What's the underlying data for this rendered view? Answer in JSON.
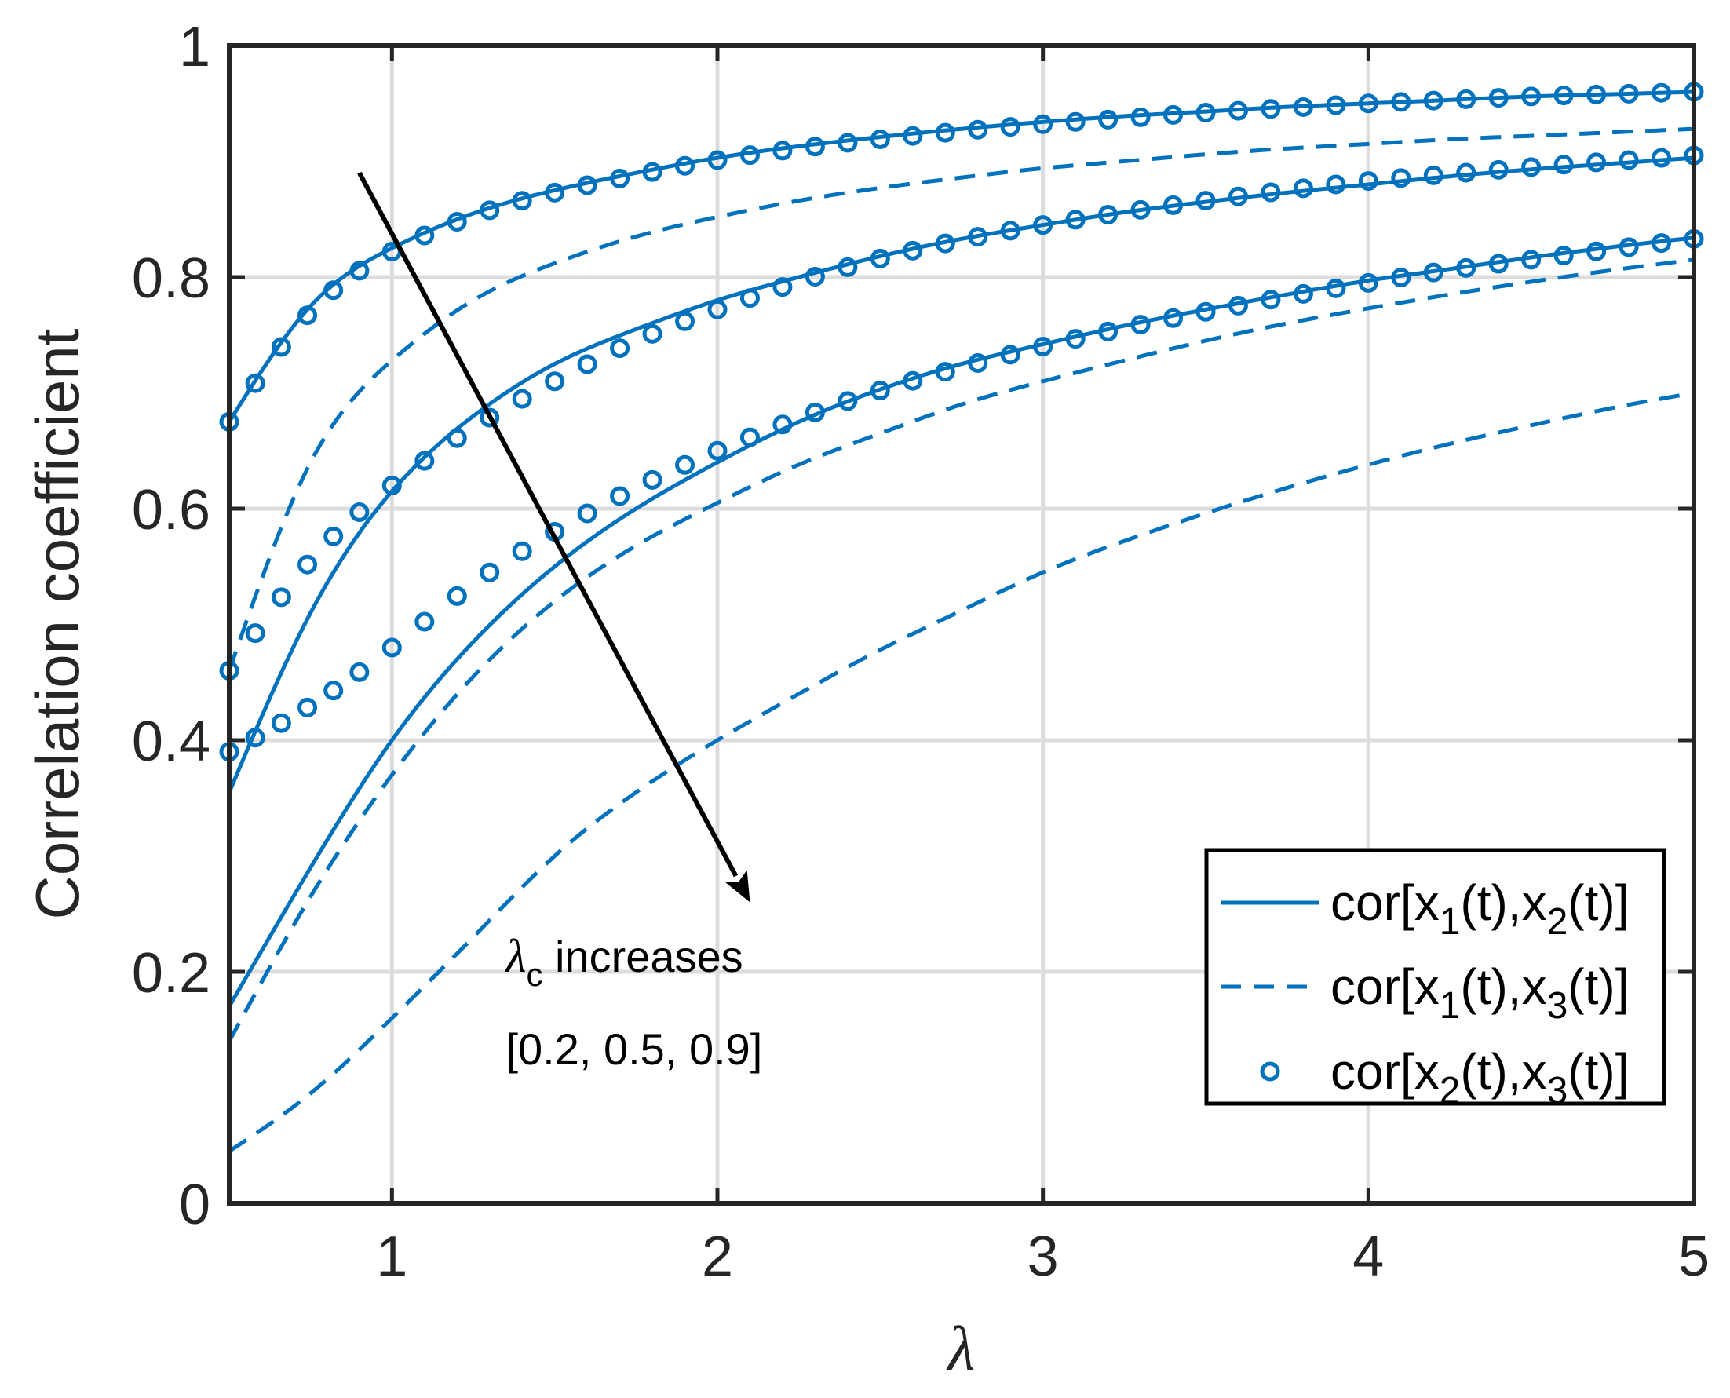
{
  "chart_data": {
    "type": "line",
    "title": "",
    "xlabel": "λ",
    "ylabel": "Correlation coefficient",
    "xlim": [
      0.5,
      5
    ],
    "ylim": [
      0,
      1
    ],
    "x_ticks": [
      1,
      2,
      3,
      4,
      5
    ],
    "y_ticks": [
      0,
      0.2,
      0.4,
      0.6,
      0.8,
      1
    ],
    "x_tick_labels": [
      "1",
      "2",
      "3",
      "4",
      "5"
    ],
    "y_tick_labels": [
      "0",
      "0.2",
      "0.4",
      "0.6",
      "0.8",
      "1"
    ],
    "grid": true,
    "legend_position": "bottom-right",
    "color": "#0072BD",
    "legend": [
      {
        "style": "solid",
        "prefix": "cor[x",
        "s1": "1",
        "mid": "(t),x",
        "s2": "2",
        "suffix": "(t)]"
      },
      {
        "style": "dashed",
        "prefix": "cor[x",
        "s1": "1",
        "mid": "(t),x",
        "s2": "3",
        "suffix": "(t)]"
      },
      {
        "style": "markers",
        "prefix": "cor[x",
        "s1": "2",
        "mid": "(t),x",
        "s2": "3",
        "suffix": "(t)]"
      }
    ],
    "x": [
      0.5,
      0.75,
      1.0,
      1.25,
      1.5,
      1.75,
      2.0,
      2.25,
      2.5,
      2.75,
      3.0,
      3.25,
      3.5,
      3.75,
      4.0,
      4.25,
      4.5,
      4.75,
      5.0
    ],
    "series": [
      {
        "name": "cor[x1(t),x2(t)] λc=0.2",
        "style": "solid",
        "values": [
          0.675,
          0.775,
          0.825,
          0.855,
          0.875,
          0.89,
          0.903,
          0.913,
          0.921,
          0.928,
          0.934,
          0.939,
          0.943,
          0.947,
          0.95,
          0.953,
          0.956,
          0.958,
          0.96
        ]
      },
      {
        "name": "cor[x1(t),x2(t)] λc=0.5",
        "style": "solid",
        "values": [
          0.355,
          0.51,
          0.615,
          0.68,
          0.725,
          0.755,
          0.78,
          0.8,
          0.818,
          0.833,
          0.845,
          0.856,
          0.865,
          0.873,
          0.88,
          0.887,
          0.893,
          0.898,
          0.903
        ]
      },
      {
        "name": "cor[x1(t),x2(t)] λc=0.9",
        "style": "solid",
        "values": [
          0.17,
          0.29,
          0.4,
          0.485,
          0.55,
          0.6,
          0.64,
          0.675,
          0.703,
          0.725,
          0.742,
          0.758,
          0.772,
          0.785,
          0.797,
          0.807,
          0.817,
          0.826,
          0.834
        ]
      },
      {
        "name": "cor[x1(t),x3(t)] λc=0.2",
        "style": "dashed",
        "values": [
          0.46,
          0.64,
          0.728,
          0.78,
          0.812,
          0.835,
          0.852,
          0.866,
          0.877,
          0.886,
          0.894,
          0.9,
          0.906,
          0.911,
          0.915,
          0.919,
          0.922,
          0.925,
          0.928
        ]
      },
      {
        "name": "cor[x1(t),x3(t)] λc=0.5",
        "style": "dashed",
        "values": [
          0.14,
          0.265,
          0.37,
          0.455,
          0.52,
          0.568,
          0.605,
          0.638,
          0.665,
          0.69,
          0.71,
          0.728,
          0.745,
          0.76,
          0.773,
          0.785,
          0.796,
          0.806,
          0.815
        ]
      },
      {
        "name": "cor[x1(t),x3(t)] λc=0.9",
        "style": "dashed",
        "values": [
          0.045,
          0.095,
          0.16,
          0.23,
          0.3,
          0.355,
          0.4,
          0.44,
          0.478,
          0.512,
          0.545,
          0.572,
          0.596,
          0.618,
          0.638,
          0.656,
          0.672,
          0.687,
          0.7
        ]
      },
      {
        "name": "cor[x2(t),x3(t)] λc=0.2",
        "style": "markers",
        "values": [
          0.675,
          0.77,
          0.822,
          0.853,
          0.873,
          0.888,
          0.901,
          0.911,
          0.919,
          0.926,
          0.932,
          0.937,
          0.942,
          0.946,
          0.95,
          0.953,
          0.956,
          0.958,
          0.96
        ]
      },
      {
        "name": "cor[x2(t),x3(t)] λc=0.5",
        "style": "markers",
        "values": [
          0.46,
          0.555,
          0.62,
          0.67,
          0.71,
          0.745,
          0.772,
          0.796,
          0.816,
          0.832,
          0.845,
          0.856,
          0.866,
          0.875,
          0.883,
          0.889,
          0.895,
          0.9,
          0.905
        ]
      },
      {
        "name": "cor[x2(t),x3(t)] λc=0.9",
        "style": "markers",
        "values": [
          0.39,
          0.43,
          0.48,
          0.535,
          0.58,
          0.618,
          0.65,
          0.678,
          0.702,
          0.722,
          0.74,
          0.756,
          0.77,
          0.783,
          0.795,
          0.806,
          0.815,
          0.824,
          0.833
        ]
      }
    ],
    "markers_x": [
      0.5,
      0.58,
      0.66,
      0.74,
      0.82,
      0.9,
      1.0,
      1.1,
      1.2,
      1.3,
      1.4,
      1.5,
      1.6,
      1.7,
      1.8,
      1.9,
      2.0,
      2.1,
      2.2,
      2.3,
      2.4,
      2.5,
      2.6,
      2.7,
      2.8,
      2.9,
      3.0,
      3.1,
      3.2,
      3.3,
      3.4,
      3.5,
      3.6,
      3.7,
      3.8,
      3.9,
      4.0,
      4.1,
      4.2,
      4.3,
      4.4,
      4.5,
      4.6,
      4.7,
      4.8,
      4.9,
      5.0
    ],
    "annotations": {
      "arrow": {
        "from": [
          0.9,
          0.89
        ],
        "to": [
          2.1,
          0.26
        ]
      },
      "arrow_label_symbol": "λ",
      "arrow_label_sub": "c",
      "arrow_label_text": " increases",
      "values_label": "[0.2, 0.5, 0.9]"
    }
  }
}
